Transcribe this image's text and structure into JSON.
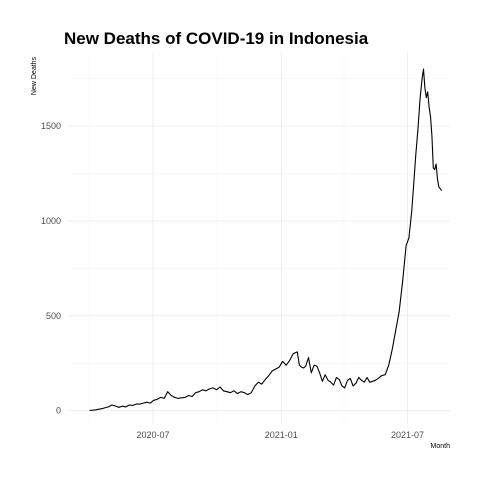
{
  "chart_data": {
    "type": "line",
    "title": "New Deaths of COVID-19 in Indonesia",
    "xlabel": "Month",
    "ylabel": "New Deaths",
    "x_tick_labels": [
      "2020-07",
      "2021-01",
      "2021-07"
    ],
    "y_ticks": [
      0,
      500,
      1000,
      1500
    ],
    "xlim": [
      "2020-03-01",
      "2021-08-31"
    ],
    "ylim": [
      -70,
      1890
    ],
    "grid": true,
    "series": [
      {
        "color": "#000000",
        "x": [
          "2020-04-01",
          "2020-04-10",
          "2020-04-20",
          "2020-04-28",
          "2020-05-03",
          "2020-05-08",
          "2020-05-13",
          "2020-05-18",
          "2020-05-23",
          "2020-05-28",
          "2020-06-02",
          "2020-06-07",
          "2020-06-12",
          "2020-06-17",
          "2020-06-22",
          "2020-06-27",
          "2020-07-02",
          "2020-07-07",
          "2020-07-12",
          "2020-07-17",
          "2020-07-22",
          "2020-07-27",
          "2020-08-01",
          "2020-08-06",
          "2020-08-11",
          "2020-08-16",
          "2020-08-21",
          "2020-08-26",
          "2020-08-31",
          "2020-09-05",
          "2020-09-10",
          "2020-09-15",
          "2020-09-20",
          "2020-09-25",
          "2020-09-30",
          "2020-10-05",
          "2020-10-10",
          "2020-10-15",
          "2020-10-20",
          "2020-10-25",
          "2020-10-30",
          "2020-11-04",
          "2020-11-09",
          "2020-11-14",
          "2020-11-19",
          "2020-11-24",
          "2020-11-29",
          "2020-12-04",
          "2020-12-09",
          "2020-12-14",
          "2020-12-19",
          "2020-12-24",
          "2020-12-29",
          "2021-01-03",
          "2021-01-08",
          "2021-01-13",
          "2021-01-18",
          "2021-01-21",
          "2021-01-24",
          "2021-01-27",
          "2021-01-30",
          "2021-02-02",
          "2021-02-05",
          "2021-02-09",
          "2021-02-13",
          "2021-02-17",
          "2021-02-21",
          "2021-02-25",
          "2021-03-01",
          "2021-03-05",
          "2021-03-09",
          "2021-03-13",
          "2021-03-17",
          "2021-03-21",
          "2021-03-25",
          "2021-03-29",
          "2021-04-02",
          "2021-04-06",
          "2021-04-10",
          "2021-04-14",
          "2021-04-18",
          "2021-04-22",
          "2021-04-26",
          "2021-04-30",
          "2021-05-04",
          "2021-05-08",
          "2021-05-12",
          "2021-05-16",
          "2021-05-20",
          "2021-05-25",
          "2021-05-30",
          "2021-06-04",
          "2021-06-09",
          "2021-06-14",
          "2021-06-19",
          "2021-06-24",
          "2021-06-29",
          "2021-07-03",
          "2021-07-07",
          "2021-07-10",
          "2021-07-13",
          "2021-07-16",
          "2021-07-19",
          "2021-07-22",
          "2021-07-24",
          "2021-07-26",
          "2021-07-28",
          "2021-07-30",
          "2021-08-01",
          "2021-08-03",
          "2021-08-05",
          "2021-08-07",
          "2021-08-09",
          "2021-08-11",
          "2021-08-13",
          "2021-08-15",
          "2021-08-17",
          "2021-08-19"
        ],
        "y": [
          1,
          5,
          12,
          20,
          30,
          25,
          18,
          24,
          20,
          30,
          28,
          35,
          35,
          40,
          45,
          40,
          55,
          60,
          70,
          65,
          100,
          80,
          70,
          65,
          68,
          70,
          80,
          75,
          95,
          100,
          110,
          105,
          115,
          120,
          110,
          125,
          105,
          100,
          95,
          105,
          90,
          100,
          95,
          85,
          95,
          130,
          150,
          140,
          165,
          185,
          210,
          220,
          230,
          260,
          240,
          265,
          300,
          305,
          310,
          240,
          230,
          225,
          235,
          280,
          200,
          240,
          235,
          200,
          155,
          190,
          160,
          150,
          135,
          175,
          165,
          130,
          120,
          160,
          170,
          130,
          145,
          175,
          160,
          150,
          175,
          150,
          155,
          160,
          170,
          185,
          190,
          240,
          320,
          420,
          520,
          680,
          870,
          910,
          1050,
          1200,
          1350,
          1480,
          1640,
          1750,
          1800,
          1700,
          1650,
          1680,
          1600,
          1550,
          1450,
          1280,
          1270,
          1300,
          1220,
          1180,
          1170,
          1160
        ]
      }
    ]
  }
}
